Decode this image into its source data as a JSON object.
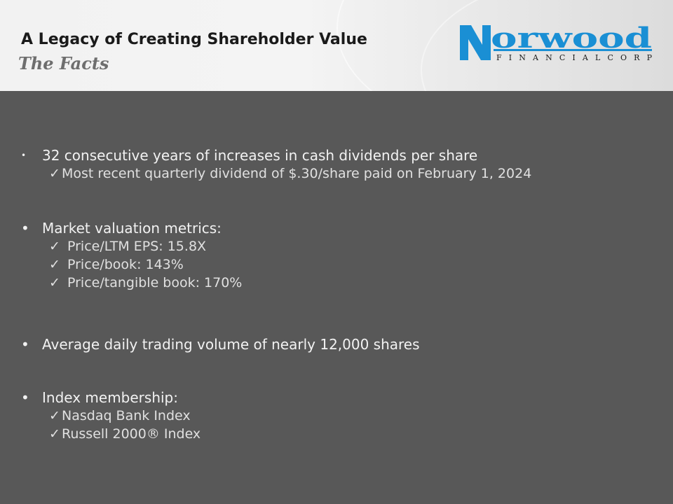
{
  "header": {
    "title": "A Legacy of Creating Shareholder Value",
    "subtitle": "The Facts"
  },
  "logo": {
    "name": "Norwood",
    "tagline": "FINANCIAL CORP",
    "color": "#1a8fd4"
  },
  "bullets": [
    {
      "text": "32 consecutive years of increases in cash dividends per share",
      "subitems": [
        "Most recent quarterly dividend of $.30/share paid on February 1, 2024"
      ]
    },
    {
      "text": "Market valuation metrics:",
      "subitems": [
        "Price/LTM EPS: 15.8X",
        "Price/book: 143%",
        "Price/tangible book: 170%"
      ]
    },
    {
      "text": "Average daily trading volume of nearly 12,000 shares",
      "subitems": []
    },
    {
      "text": "Index membership:",
      "subitems": [
        "Nasdaq Bank Index",
        "Russell 2000® Index"
      ]
    }
  ],
  "bullet_glyph": "•",
  "check_glyph": "✓",
  "colors": {
    "background": "#585858",
    "text": "#f2f2f2",
    "title": "#1a1a1a",
    "subtitle": "#6e6e6e"
  }
}
